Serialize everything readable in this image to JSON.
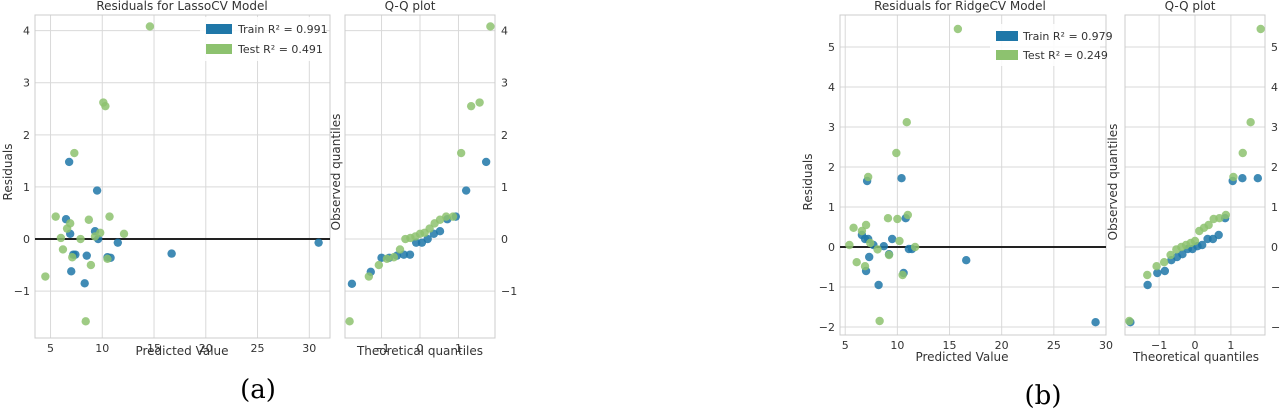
{
  "colors": {
    "train": "#1f77a8",
    "test": "#8dc26f",
    "zero_line": "#222222",
    "grid": "#d9d9d9",
    "frame": "#cccccc"
  },
  "figures": [
    {
      "sublabel": "(a)",
      "residuals_title": "Residuals for LassoCV Model",
      "qq_title": "Q-Q plot",
      "xlabel": "Predicted Value",
      "ylabel": "Residuals",
      "qq_xlabel": "Theoretical quantiles",
      "qq_ylabel": "Observed quantiles",
      "legend_train": "Train R² = 0.991",
      "legend_test": "Test R² = 0.491"
    },
    {
      "sublabel": "(b)",
      "residuals_title": "Residuals for RidgeCV Model",
      "qq_title": "Q-Q plot",
      "xlabel": "Predicted Value",
      "ylabel": "Residuals",
      "qq_xlabel": "Theoretical quantiles",
      "qq_ylabel": "Observed quantiles",
      "legend_train": "Train R² = 0.979",
      "legend_test": "Test R² = 0.249"
    }
  ],
  "chart_data": [
    {
      "type": "scatter",
      "title": "Residuals for LassoCV Model",
      "xlabel": "Predicted Value",
      "ylabel": "Residuals",
      "xlim": [
        3.5,
        32
      ],
      "ylim": [
        -1.9,
        4.3
      ],
      "xticks": [
        5,
        10,
        15,
        20,
        25,
        30
      ],
      "yticks": [
        -1,
        0,
        1,
        2,
        3,
        4
      ],
      "grid": true,
      "legend_position": "top-right",
      "zero_line": 0,
      "series": [
        {
          "name": "Train R² = 0.991",
          "points": [
            [
              6.5,
              0.38
            ],
            [
              6.8,
              1.48
            ],
            [
              6.9,
              0.1
            ],
            [
              7.0,
              -0.62
            ],
            [
              7.2,
              -0.3
            ],
            [
              7.4,
              -0.3
            ],
            [
              8.3,
              -0.85
            ],
            [
              8.5,
              -0.32
            ],
            [
              9.3,
              0.15
            ],
            [
              9.5,
              0.93
            ],
            [
              9.6,
              0.0
            ],
            [
              10.5,
              -0.35
            ],
            [
              10.8,
              -0.36
            ],
            [
              11.5,
              -0.07
            ],
            [
              16.7,
              -0.28
            ],
            [
              30.9,
              -0.07
            ]
          ]
        },
        {
          "name": "Test R² = 0.491",
          "points": [
            [
              4.5,
              -0.72
            ],
            [
              5.5,
              0.43
            ],
            [
              6.0,
              0.02
            ],
            [
              6.2,
              -0.2
            ],
            [
              6.6,
              0.2
            ],
            [
              6.9,
              0.3
            ],
            [
              7.1,
              -0.35
            ],
            [
              7.3,
              1.65
            ],
            [
              7.9,
              0.0
            ],
            [
              8.4,
              -1.58
            ],
            [
              8.7,
              0.37
            ],
            [
              8.9,
              -0.5
            ],
            [
              9.3,
              0.05
            ],
            [
              9.8,
              0.12
            ],
            [
              10.1,
              2.62
            ],
            [
              10.3,
              2.55
            ],
            [
              10.5,
              -0.38
            ],
            [
              10.7,
              0.43
            ],
            [
              12.1,
              0.1
            ],
            [
              14.6,
              4.08
            ]
          ]
        }
      ]
    },
    {
      "type": "scatter",
      "title": "Q-Q plot",
      "xlabel": "Theoretical quantiles",
      "ylabel": "Observed quantiles",
      "xlim": [
        -1.95,
        1.95
      ],
      "ylim": [
        -1.9,
        4.3
      ],
      "xticks": [
        -1,
        0,
        1
      ],
      "yticks": [
        -1,
        0,
        1,
        2,
        3,
        4
      ],
      "grid": true,
      "series": [
        {
          "name": "Train R² = 0.991",
          "points": [
            [
              -1.77,
              -0.86
            ],
            [
              -1.28,
              -0.63
            ],
            [
              -1.0,
              -0.36
            ],
            [
              -0.8,
              -0.36
            ],
            [
              -0.6,
              -0.32
            ],
            [
              -0.42,
              -0.3
            ],
            [
              -0.26,
              -0.3
            ],
            [
              -0.1,
              -0.07
            ],
            [
              0.05,
              -0.07
            ],
            [
              0.2,
              0.0
            ],
            [
              0.36,
              0.1
            ],
            [
              0.52,
              0.15
            ],
            [
              0.71,
              0.38
            ],
            [
              0.93,
              0.43
            ],
            [
              1.2,
              0.93
            ],
            [
              1.72,
              1.48
            ]
          ]
        },
        {
          "name": "Test R² = 0.491",
          "points": [
            [
              -1.83,
              -1.58
            ],
            [
              -1.33,
              -0.72
            ],
            [
              -1.07,
              -0.5
            ],
            [
              -0.86,
              -0.38
            ],
            [
              -0.68,
              -0.35
            ],
            [
              -0.52,
              -0.2
            ],
            [
              -0.38,
              0.0
            ],
            [
              -0.25,
              0.02
            ],
            [
              -0.12,
              0.05
            ],
            [
              0.0,
              0.1
            ],
            [
              0.12,
              0.12
            ],
            [
              0.25,
              0.2
            ],
            [
              0.38,
              0.3
            ],
            [
              0.52,
              0.37
            ],
            [
              0.68,
              0.43
            ],
            [
              0.86,
              0.43
            ],
            [
              1.07,
              1.65
            ],
            [
              1.33,
              2.55
            ],
            [
              1.55,
              2.62
            ],
            [
              1.83,
              4.08
            ]
          ]
        }
      ]
    },
    {
      "type": "scatter",
      "title": "Residuals for RidgeCV Model",
      "xlabel": "Predicted Value",
      "ylabel": "Residuals",
      "xlim": [
        4.5,
        30
      ],
      "ylim": [
        -2.2,
        5.8
      ],
      "xticks": [
        5,
        10,
        15,
        20,
        25,
        30
      ],
      "yticks": [
        -2,
        -1,
        0,
        1,
        2,
        3,
        4,
        5
      ],
      "grid": true,
      "legend_position": "top-right",
      "zero_line": 0,
      "series": [
        {
          "name": "Train R² = 0.979",
          "points": [
            [
              6.6,
              0.3
            ],
            [
              6.9,
              0.2
            ],
            [
              7.0,
              -0.6
            ],
            [
              7.1,
              1.65
            ],
            [
              7.2,
              0.2
            ],
            [
              7.3,
              -0.25
            ],
            [
              7.7,
              0.05
            ],
            [
              8.2,
              -0.95
            ],
            [
              8.7,
              0.02
            ],
            [
              9.2,
              -0.18
            ],
            [
              9.5,
              0.2
            ],
            [
              10.4,
              1.72
            ],
            [
              10.6,
              -0.65
            ],
            [
              10.8,
              0.72
            ],
            [
              11.1,
              -0.05
            ],
            [
              11.4,
              -0.05
            ],
            [
              16.6,
              -0.33
            ],
            [
              29.0,
              -1.88
            ]
          ]
        },
        {
          "name": "Test R² = 0.249",
          "points": [
            [
              5.4,
              0.05
            ],
            [
              5.8,
              0.48
            ],
            [
              6.1,
              -0.38
            ],
            [
              6.6,
              0.4
            ],
            [
              6.9,
              -0.48
            ],
            [
              7.0,
              0.55
            ],
            [
              7.2,
              1.75
            ],
            [
              7.4,
              0.1
            ],
            [
              8.1,
              -0.06
            ],
            [
              8.3,
              -1.85
            ],
            [
              9.1,
              0.72
            ],
            [
              9.2,
              -0.2
            ],
            [
              9.9,
              2.35
            ],
            [
              10.0,
              0.7
            ],
            [
              10.2,
              0.15
            ],
            [
              10.5,
              -0.7
            ],
            [
              10.9,
              3.12
            ],
            [
              11.0,
              0.8
            ],
            [
              11.7,
              0.0
            ],
            [
              15.8,
              5.45
            ]
          ]
        }
      ]
    },
    {
      "type": "scatter",
      "title": "Q-Q plot",
      "xlabel": "Theoretical quantiles",
      "ylabel": "Observed quantiles",
      "xlim": [
        -1.95,
        1.95
      ],
      "ylim": [
        -2.2,
        5.8
      ],
      "xticks": [
        -1,
        0,
        1
      ],
      "yticks": [
        -2,
        -1,
        0,
        1,
        2,
        3,
        4,
        5
      ],
      "grid": true,
      "series": [
        {
          "name": "Train R² = 0.979",
          "points": [
            [
              -1.8,
              -1.88
            ],
            [
              -1.32,
              -0.95
            ],
            [
              -1.05,
              -0.65
            ],
            [
              -0.84,
              -0.6
            ],
            [
              -0.66,
              -0.33
            ],
            [
              -0.5,
              -0.25
            ],
            [
              -0.35,
              -0.18
            ],
            [
              -0.2,
              -0.05
            ],
            [
              -0.07,
              -0.05
            ],
            [
              0.07,
              0.02
            ],
            [
              0.2,
              0.05
            ],
            [
              0.35,
              0.2
            ],
            [
              0.5,
              0.2
            ],
            [
              0.66,
              0.3
            ],
            [
              0.84,
              0.72
            ],
            [
              1.05,
              1.65
            ],
            [
              1.32,
              1.72
            ],
            [
              1.75,
              1.72
            ]
          ]
        },
        {
          "name": "Test R² = 0.249",
          "points": [
            [
              -1.83,
              -1.85
            ],
            [
              -1.33,
              -0.7
            ],
            [
              -1.07,
              -0.48
            ],
            [
              -0.86,
              -0.38
            ],
            [
              -0.68,
              -0.2
            ],
            [
              -0.52,
              -0.06
            ],
            [
              -0.38,
              0.0
            ],
            [
              -0.25,
              0.05
            ],
            [
              -0.12,
              0.1
            ],
            [
              0.0,
              0.15
            ],
            [
              0.12,
              0.4
            ],
            [
              0.25,
              0.48
            ],
            [
              0.38,
              0.55
            ],
            [
              0.52,
              0.7
            ],
            [
              0.68,
              0.72
            ],
            [
              0.86,
              0.8
            ],
            [
              1.07,
              1.75
            ],
            [
              1.33,
              2.35
            ],
            [
              1.55,
              3.12
            ],
            [
              1.83,
              5.45
            ]
          ]
        }
      ]
    }
  ]
}
